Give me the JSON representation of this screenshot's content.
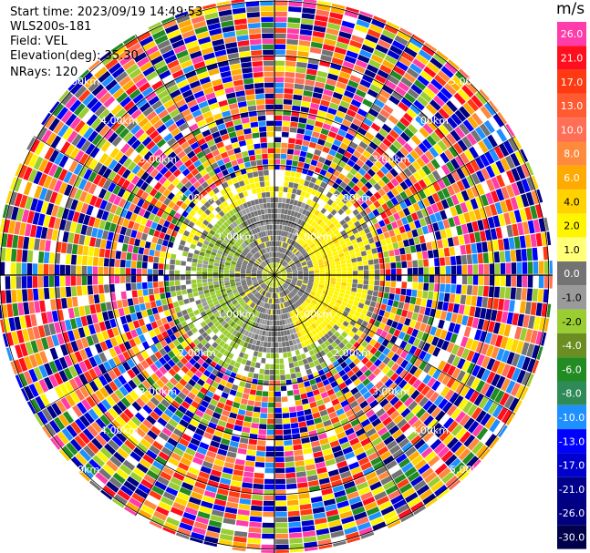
{
  "header": {
    "start_time": "Start time: 2023/09/19 14:49:53",
    "station": "WLS200s-181",
    "field": "Field: VEL",
    "elevation": "Elevation(deg): 35.30",
    "nrays": "NRays: 120"
  },
  "colorbar": {
    "unit": "m/s",
    "levels": [
      {
        "label": "26.0",
        "color": "#ff3caa"
      },
      {
        "label": "21.0",
        "color": "#ff0f1e"
      },
      {
        "label": "17.0",
        "color": "#ff3a12"
      },
      {
        "label": "13.0",
        "color": "#ff5a32"
      },
      {
        "label": "10.0",
        "color": "#ff6e55"
      },
      {
        "label": "8.0",
        "color": "#ff8a3c"
      },
      {
        "label": "6.0",
        "color": "#ffaa00"
      },
      {
        "label": "4.0",
        "color": "#ffd200"
      },
      {
        "label": "2.0",
        "color": "#fff500"
      },
      {
        "label": "1.0",
        "color": "#ffff78"
      },
      {
        "label": "0.0",
        "color": "#737373"
      },
      {
        "label": "-1.0",
        "color": "#9a9a9a"
      },
      {
        "label": "-2.0",
        "color": "#9acd32"
      },
      {
        "label": "-4.0",
        "color": "#6b8e23"
      },
      {
        "label": "-6.0",
        "color": "#228b22"
      },
      {
        "label": "-8.0",
        "color": "#2e8b57"
      },
      {
        "label": "-10.0",
        "color": "#1e90ff"
      },
      {
        "label": "-13.0",
        "color": "#0000ff"
      },
      {
        "label": "-17.0",
        "color": "#0000cd"
      },
      {
        "label": "-21.0",
        "color": "#00008b"
      },
      {
        "label": "-26.0",
        "color": "#000080"
      },
      {
        "label": "-30.0",
        "color": "#00004b"
      }
    ]
  },
  "chart_data": {
    "type": "heatmap",
    "projection": "polar-ppi",
    "n_rays": 120,
    "range_ring_labels": [
      "1.00km",
      "2.00km",
      "3.00km",
      "4.00km",
      "5.00km"
    ],
    "range_rings_km": [
      1,
      2,
      3,
      4,
      5
    ],
    "zones": [
      {
        "from_km": 0,
        "to_km": 0.2,
        "content": "yellow/green near-zero velocities"
      },
      {
        "from_km": 0.2,
        "to_km": 1.0,
        "content": "grey near-zero velocities"
      },
      {
        "from_km": 1.0,
        "to_km": 2.0,
        "content": "positive (yellow) to east, negative (green) to west/south, grey north"
      },
      {
        "from_km": 2.0,
        "to_km": 2.7,
        "content": "patchy yellow/grey/green"
      },
      {
        "from_km": 2.7,
        "to_km": 5.8,
        "content": "noise: random velocities across full scale"
      }
    ]
  }
}
